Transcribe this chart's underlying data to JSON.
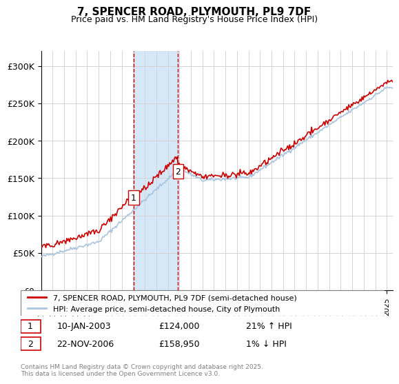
{
  "title": "7, SPENCER ROAD, PLYMOUTH, PL9 7DF",
  "subtitle": "Price paid vs. HM Land Registry's House Price Index (HPI)",
  "legend_line1": "7, SPENCER ROAD, PLYMOUTH, PL9 7DF (semi-detached house)",
  "legend_line2": "HPI: Average price, semi-detached house, City of Plymouth",
  "annotation1_label": "1",
  "annotation1_date": "10-JAN-2003",
  "annotation1_price": "£124,000",
  "annotation1_hpi": "21% ↑ HPI",
  "annotation2_label": "2",
  "annotation2_date": "22-NOV-2006",
  "annotation2_price": "£158,950",
  "annotation2_hpi": "1% ↓ HPI",
  "footer": "Contains HM Land Registry data © Crown copyright and database right 2025.\nThis data is licensed under the Open Government Licence v3.0.",
  "hpi_color": "#a8c4e0",
  "price_color": "#cc0000",
  "annotation_vline_color": "#cc0000",
  "shaded_region_color": "#d6e8f7",
  "ylim": [
    0,
    320000
  ],
  "yticks": [
    0,
    50000,
    100000,
    150000,
    200000,
    250000,
    300000
  ],
  "ytick_labels": [
    "£0",
    "£50K",
    "£100K",
    "£150K",
    "£200K",
    "£250K",
    "£300K"
  ],
  "x_start_year": 1995,
  "x_end_year": 2025
}
